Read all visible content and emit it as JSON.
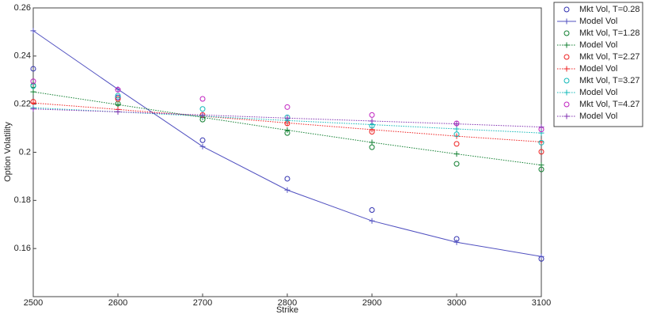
{
  "chart_data": {
    "type": "line",
    "x_label": "Strike",
    "y_label": "Option Volatility",
    "x": [
      2500,
      2600,
      2700,
      2800,
      2900,
      3000,
      3100
    ],
    "xlim": [
      2500,
      3100
    ],
    "xticks": [
      2500,
      2600,
      2700,
      2800,
      2900,
      3000,
      3100
    ],
    "ylim": [
      0.14,
      0.26
    ],
    "yticks": [
      0.16,
      0.18,
      0.2,
      0.22,
      0.24,
      0.26
    ],
    "legend": "outside-top-right",
    "series": [
      {
        "name": "Mkt Vol, T=0.28",
        "color": "#3030b0",
        "marker": "circle",
        "line": "none",
        "values": [
          0.2347,
          0.2228,
          0.205,
          0.189,
          0.176,
          0.164,
          0.1557
        ]
      },
      {
        "name": "Model Vol",
        "color": "#5050c0",
        "marker": "plus",
        "line": "solid",
        "values": [
          0.2505,
          0.2262,
          0.2024,
          0.1843,
          0.1715,
          0.1626,
          0.1567
        ]
      },
      {
        "name": "Mkt Vol, T=1.28",
        "color": "#107f30",
        "marker": "circle",
        "line": "none",
        "values": [
          0.2278,
          0.2202,
          0.2136,
          0.208,
          0.2021,
          0.1952,
          0.1929
        ]
      },
      {
        "name": "Model Vol",
        "color": "#107f30",
        "marker": "plus",
        "line": "dotted",
        "values": [
          0.2251,
          0.2198,
          0.2145,
          0.2092,
          0.2041,
          0.1993,
          0.1947
        ]
      },
      {
        "name": "Mkt Vol, T=2.27",
        "color": "#ee2020",
        "marker": "circle",
        "line": "none",
        "values": [
          0.221,
          0.2222,
          0.2155,
          0.212,
          0.2085,
          0.2035,
          0.2002
        ]
      },
      {
        "name": "Model Vol",
        "color": "#ee2020",
        "marker": "plus",
        "line": "dotted",
        "values": [
          0.2205,
          0.2178,
          0.215,
          0.2122,
          0.2094,
          0.2067,
          0.2043
        ]
      },
      {
        "name": "Mkt Vol, T=3.27",
        "color": "#10b8b8",
        "marker": "circle",
        "line": "none",
        "values": [
          0.2275,
          0.2235,
          0.218,
          0.2145,
          0.211,
          0.2075,
          0.204
        ]
      },
      {
        "name": "Model Vol",
        "color": "#10b8b8",
        "marker": "plus",
        "line": "dotted",
        "values": [
          0.2185,
          0.2168,
          0.215,
          0.2132,
          0.2115,
          0.2097,
          0.208
        ]
      },
      {
        "name": "Mkt Vol, T=4.27",
        "color": "#c020c0",
        "marker": "circle",
        "line": "none",
        "values": [
          0.2295,
          0.226,
          0.2222,
          0.2188,
          0.2155,
          0.212,
          0.2095
        ]
      },
      {
        "name": "Model Vol",
        "color": "#8030b0",
        "marker": "plus",
        "line": "dotted",
        "values": [
          0.218,
          0.2168,
          0.2155,
          0.2142,
          0.213,
          0.2118,
          0.2105
        ]
      }
    ]
  }
}
